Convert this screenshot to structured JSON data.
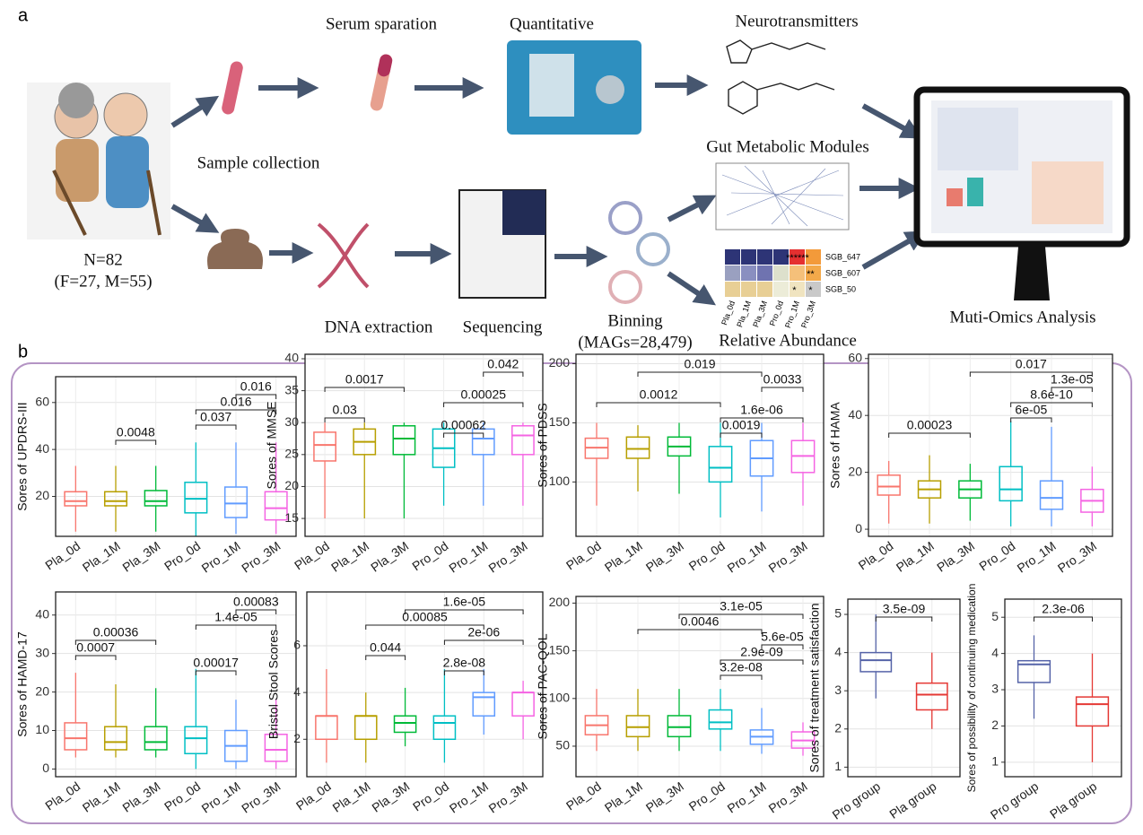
{
  "panel_labels": [
    "a",
    "b"
  ],
  "workflow": {
    "participants": "N=82",
    "sex_split": "(F=27, M=55)",
    "sample_collection": "Sample collection",
    "serum": "Serum sparation",
    "quantitative": "Quantitative",
    "neurotransmitters": "Neurotransmitters",
    "gut_modules": "Gut Metabolic Modules",
    "dna": "DNA extraction",
    "sequencing": "Sequencing",
    "binning": "Binning",
    "mags": "(MAGs=28,479)",
    "relative_abundance": "Relative Abundance",
    "multi_omics": "Muti-Omics Analysis",
    "heatmap": {
      "rows": [
        "SGB_647",
        "SGB_607",
        "SGB_50"
      ],
      "columns": [
        "Pla_0d",
        "Pla_1M",
        "Pla_3M",
        "Pro_0d",
        "Pro_1M",
        "Pro_3M"
      ],
      "stars": [
        "******",
        "**",
        "*",
        "*"
      ]
    }
  },
  "chart_data": [
    {
      "type": "box",
      "ylabel": "Sores of UPDRS-III",
      "categories": [
        "Pla_0d",
        "Pla_1M",
        "Pla_3M",
        "Pro_0d",
        "Pro_1M",
        "Pro_3M"
      ],
      "colors": [
        "#f8766d",
        "#b79f00",
        "#00ba38",
        "#00bfc4",
        "#619cff",
        "#f564e3"
      ],
      "boxes": [
        {
          "min": 5,
          "q1": 16,
          "median": 18,
          "q3": 22,
          "max": 33
        },
        {
          "min": 5,
          "q1": 16,
          "median": 18,
          "q3": 22,
          "max": 33
        },
        {
          "min": 5,
          "q1": 16,
          "median": 18,
          "q3": 22.5,
          "max": 33
        },
        {
          "min": 3,
          "q1": 13,
          "median": 19,
          "q3": 26,
          "max": 43
        },
        {
          "min": 4,
          "q1": 11,
          "median": 17,
          "q3": 24,
          "max": 43
        },
        {
          "min": 4,
          "q1": 10,
          "median": 15,
          "q3": 22,
          "max": 43
        }
      ],
      "ylim": [
        3,
        71
      ],
      "yticks": [
        20,
        40,
        60
      ],
      "grid": true,
      "comparisons": [
        "0.016",
        "0.016",
        "0.037",
        "0.0048"
      ]
    },
    {
      "type": "box",
      "ylabel": "Sores of MMSE",
      "categories": [
        "Pla_0d",
        "Pla_1M",
        "Pla_3M",
        "Pro_0d",
        "Pro_1M",
        "Pro_3M"
      ],
      "colors": [
        "#f8766d",
        "#b79f00",
        "#00ba38",
        "#00bfc4",
        "#619cff",
        "#f564e3"
      ],
      "boxes": [
        {
          "min": 15,
          "q1": 24,
          "median": 26.5,
          "q3": 28.5,
          "max": 30
        },
        {
          "min": 15,
          "q1": 25,
          "median": 27,
          "q3": 29,
          "max": 30
        },
        {
          "min": 15,
          "q1": 25,
          "median": 27.5,
          "q3": 29.5,
          "max": 30
        },
        {
          "min": 17,
          "q1": 23,
          "median": 26,
          "q3": 29,
          "max": 30
        },
        {
          "min": 17,
          "q1": 25,
          "median": 27.5,
          "q3": 29,
          "max": 30
        },
        {
          "min": 17,
          "q1": 25,
          "median": 28,
          "q3": 29.5,
          "max": 30
        }
      ],
      "ylim": [
        12.2,
        40.7
      ],
      "yticks": [
        15,
        20,
        25,
        30,
        35,
        40
      ],
      "grid": true,
      "comparisons": [
        "0.042",
        "0.0017",
        "0.00025",
        "0.03",
        "0.00062"
      ]
    },
    {
      "type": "box",
      "ylabel": "Sores of PDSS",
      "categories": [
        "Pla_0d",
        "Pla_1M",
        "Pla_3M",
        "Pro_0d",
        "Pro_1M",
        "Pro_3M"
      ],
      "colors": [
        "#f8766d",
        "#b79f00",
        "#00ba38",
        "#00bfc4",
        "#619cff",
        "#f564e3"
      ],
      "boxes": [
        {
          "min": 80,
          "q1": 120,
          "median": 129,
          "q3": 137,
          "max": 150
        },
        {
          "min": 92,
          "q1": 120,
          "median": 128,
          "q3": 138,
          "max": 148
        },
        {
          "min": 90,
          "q1": 122,
          "median": 130,
          "q3": 138,
          "max": 150
        },
        {
          "min": 70,
          "q1": 100,
          "median": 112,
          "q3": 130,
          "max": 150
        },
        {
          "min": 75,
          "q1": 105,
          "median": 120,
          "q3": 135,
          "max": 150
        },
        {
          "min": 80,
          "q1": 108,
          "median": 122,
          "q3": 135,
          "max": 150
        }
      ],
      "ylim": [
        54,
        208
      ],
      "yticks": [
        100,
        150,
        200
      ],
      "grid": true,
      "comparisons": [
        "0.019",
        "0.0033",
        "0.0012",
        "1.6e-06",
        "0.0019"
      ]
    },
    {
      "type": "box",
      "ylabel": "Sores of HAMA",
      "categories": [
        "Pla_0d",
        "Pla_1M",
        "Pla_3M",
        "Pro_0d",
        "Pro_1M",
        "Pro_3M"
      ],
      "colors": [
        "#f8766d",
        "#b79f00",
        "#00ba38",
        "#00bfc4",
        "#619cff",
        "#f564e3"
      ],
      "boxes": [
        {
          "min": 2,
          "q1": 12,
          "median": 15,
          "q3": 19,
          "max": 24
        },
        {
          "min": 2,
          "q1": 11,
          "median": 14,
          "q3": 17,
          "max": 26
        },
        {
          "min": 3,
          "q1": 11,
          "median": 14,
          "q3": 17,
          "max": 23
        },
        {
          "min": 1,
          "q1": 10,
          "median": 14,
          "q3": 22,
          "max": 38
        },
        {
          "min": 1,
          "q1": 7,
          "median": 11,
          "q3": 17,
          "max": 36
        },
        {
          "min": 1,
          "q1": 6,
          "median": 10,
          "q3": 14,
          "max": 22
        }
      ],
      "ylim": [
        -2.5,
        61.5
      ],
      "yticks": [
        0,
        20,
        40,
        60
      ],
      "grid": true,
      "comparisons": [
        "0.017",
        "1.3e-05",
        "8.6e-10",
        "6e-05",
        "0.00023"
      ]
    },
    {
      "type": "box",
      "ylabel": "Sores of HAMD-17",
      "categories": [
        "Pla_0d",
        "Pla_1M",
        "Pla_3M",
        "Pro_0d",
        "Pro_1M",
        "Pro_3M"
      ],
      "colors": [
        "#f8766d",
        "#b79f00",
        "#00ba38",
        "#00bfc4",
        "#619cff",
        "#f564e3"
      ],
      "boxes": [
        {
          "min": 3,
          "q1": 5,
          "median": 8,
          "q3": 12,
          "max": 25
        },
        {
          "min": 3,
          "q1": 5,
          "median": 7,
          "q3": 11,
          "max": 22
        },
        {
          "min": 3,
          "q1": 5,
          "median": 7,
          "q3": 11,
          "max": 21
        },
        {
          "min": 0,
          "q1": 4,
          "median": 8,
          "q3": 11,
          "max": 26
        },
        {
          "min": 0,
          "q1": 2,
          "median": 6,
          "q3": 10,
          "max": 18
        },
        {
          "min": 0,
          "q1": 2,
          "median": 5,
          "q3": 9,
          "max": 18
        }
      ],
      "ylim": [
        -2,
        46
      ],
      "yticks": [
        0,
        10,
        20,
        30,
        40
      ],
      "grid": true,
      "comparisons": [
        "0.00083",
        "1.4e-05",
        "0.00036",
        "0.0007",
        "0.00017"
      ]
    },
    {
      "type": "box",
      "ylabel": "Bristol Stool Scores",
      "categories": [
        "Pla_0d",
        "Pla_1M",
        "Pla_3M",
        "Pro_0d",
        "Pro_1M",
        "Pro_3M"
      ],
      "colors": [
        "#f8766d",
        "#b79f00",
        "#00ba38",
        "#00bfc4",
        "#619cff",
        "#f564e3"
      ],
      "boxes": [
        {
          "min": 1,
          "q1": 2,
          "median": 3,
          "q3": 3,
          "max": 5
        },
        {
          "min": 1,
          "q1": 2,
          "median": 3,
          "q3": 3,
          "max": 4
        },
        {
          "min": 1.7,
          "q1": 2.3,
          "median": 2.7,
          "q3": 3,
          "max": 4.2
        },
        {
          "min": 1,
          "q1": 2,
          "median": 2.7,
          "q3": 3,
          "max": 5
        },
        {
          "min": 2.2,
          "q1": 3,
          "median": 3.8,
          "q3": 4,
          "max": 5
        },
        {
          "min": 2,
          "q1": 3,
          "median": 4,
          "q3": 4,
          "max": 4.5
        }
      ],
      "ylim": [
        0.4,
        8.3
      ],
      "yticks": [
        2,
        4,
        6
      ],
      "grid": true,
      "comparisons": [
        "1.6e-05",
        "0.00085",
        "2e-06",
        "0.044",
        "2.8e-08"
      ]
    },
    {
      "type": "box",
      "ylabel": "Sores of PAC-QOL",
      "categories": [
        "Pla_0d",
        "Pla_1M",
        "Pla_3M",
        "Pro_0d",
        "Pro_1M",
        "Pro_3M"
      ],
      "colors": [
        "#f8766d",
        "#b79f00",
        "#00ba38",
        "#00bfc4",
        "#619cff",
        "#f564e3"
      ],
      "boxes": [
        {
          "min": 45,
          "q1": 62,
          "median": 72,
          "q3": 82,
          "max": 110
        },
        {
          "min": 45,
          "q1": 60,
          "median": 70,
          "q3": 82,
          "max": 110
        },
        {
          "min": 45,
          "q1": 60,
          "median": 70,
          "q3": 82,
          "max": 110
        },
        {
          "min": 45,
          "q1": 68,
          "median": 75,
          "q3": 88,
          "max": 110
        },
        {
          "min": 42,
          "q1": 52,
          "median": 60,
          "q3": 67,
          "max": 90
        },
        {
          "min": 40,
          "q1": 48,
          "median": 56,
          "q3": 65,
          "max": 75
        }
      ],
      "ylim": [
        18,
        207
      ],
      "yticks": [
        50,
        100,
        150,
        200
      ],
      "grid": true,
      "comparisons": [
        "3.1e-05",
        "0.0046",
        "5.6e-05",
        "2.9e-09",
        "3.2e-08"
      ]
    },
    {
      "type": "box",
      "ylabel": "Sores of treatment satisfaction",
      "categories": [
        "Pro group",
        "Pla group"
      ],
      "colors": [
        "#5563a8",
        "#e53935"
      ],
      "boxes": [
        {
          "min": 2.8,
          "q1": 3.5,
          "median": 3.8,
          "q3": 4,
          "max": 5
        },
        {
          "min": 2,
          "q1": 2.5,
          "median": 2.9,
          "q3": 3.2,
          "max": 4
        }
      ],
      "ylim": [
        0.75,
        5.4
      ],
      "yticks": [
        1,
        2,
        3,
        4,
        5
      ],
      "grid": true,
      "comparisons": [
        "3.5e-09"
      ]
    },
    {
      "type": "box",
      "ylabel": "Sores of possibility of continuing medication",
      "categories": [
        "Pro group",
        "Pla group"
      ],
      "colors": [
        "#5563a8",
        "#e53935"
      ],
      "boxes": [
        {
          "min": 2.2,
          "q1": 3.2,
          "median": 3.7,
          "q3": 3.8,
          "max": 4.5
        },
        {
          "min": 1,
          "q1": 2,
          "median": 2.6,
          "q3": 2.8,
          "max": 4
        }
      ],
      "ylim": [
        0.6,
        5.5
      ],
      "yticks": [
        1,
        2,
        3,
        4,
        5
      ],
      "grid": true,
      "comparisons": [
        "2.3e-06"
      ]
    }
  ]
}
